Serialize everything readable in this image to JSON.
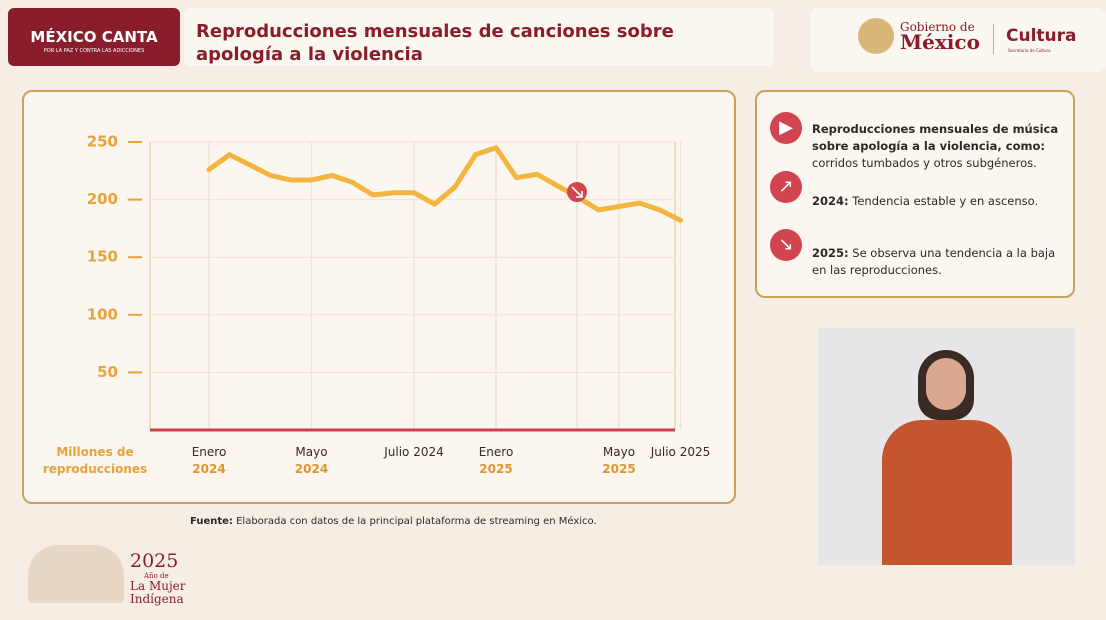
{
  "header": {
    "badge": "MÉXICO CANTA",
    "badge_sub": "POR LA PAZ Y CONTRA LAS ADICCIONES",
    "title": "Reproducciones mensuales de canciones sobre apología a la violencia",
    "gov_small": "Gobierno de",
    "gov_big": "México",
    "ministry": "Cultura",
    "ministry_sub": "Secretaría de Cultura"
  },
  "chart_data": {
    "type": "line",
    "x_axis_label": "Millones de reproducciones",
    "categories": [
      "Enero 2024",
      null,
      null,
      null,
      null,
      "Mayo 2024",
      null,
      null,
      null,
      null,
      "Julio 2024",
      null,
      null,
      null,
      "Enero 2025",
      null,
      null,
      null,
      null,
      null,
      "Mayo 2025",
      null,
      null,
      "Julio 2025"
    ],
    "series": [
      {
        "color": "#f2b53e",
        "values": [
          226,
          239,
          230,
          221,
          217,
          217,
          221,
          215,
          204,
          206,
          206,
          196,
          211,
          239,
          245,
          219,
          222,
          212,
          202,
          191,
          194,
          197,
          191,
          182
        ]
      }
    ],
    "ylim": [
      0,
      250
    ],
    "yticks": [
      50,
      100,
      150,
      200,
      250
    ],
    "grid": true
  },
  "notes": {
    "items": [
      {
        "bold": "Reproducciones mensuales de música sobre apología a la violencia, como:",
        "text": "corridos tumbados y otros subgéneros."
      },
      {
        "bold": "2024:",
        "text": "Tendencia estable y en ascenso."
      },
      {
        "bold": "2025:",
        "text": "Se observa una tendencia a la baja en las reproducciones."
      }
    ]
  },
  "source": {
    "bold": "Fuente:",
    "text": "Elaborada con datos de la principal plataforma de streaming en México."
  },
  "footer": {
    "year": "2025",
    "line1": "Año de",
    "line2": "La Mujer",
    "line3": "Indígena"
  }
}
